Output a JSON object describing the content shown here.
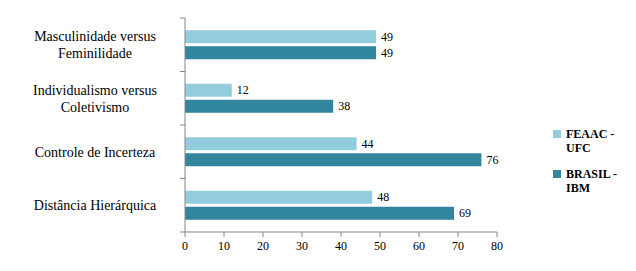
{
  "chart_data": {
    "type": "bar",
    "orientation": "horizontal",
    "categories": [
      "Masculinidade versus Feminilidade",
      "Individualismo versus Coletivismo",
      "Controle de Incerteza",
      "Distância Hierárquica"
    ],
    "series": [
      {
        "name": "FEAAC - UFC",
        "color": "#93cddd",
        "values": [
          49,
          12,
          44,
          48
        ]
      },
      {
        "name": "BRASIL - IBM",
        "color": "#31859c",
        "values": [
          49,
          38,
          76,
          69
        ]
      }
    ],
    "xlim": [
      0,
      80
    ],
    "xticks": [
      0,
      10,
      20,
      30,
      40,
      50,
      60,
      70,
      80
    ],
    "grid": false,
    "legend": "right",
    "data_labels": true
  }
}
